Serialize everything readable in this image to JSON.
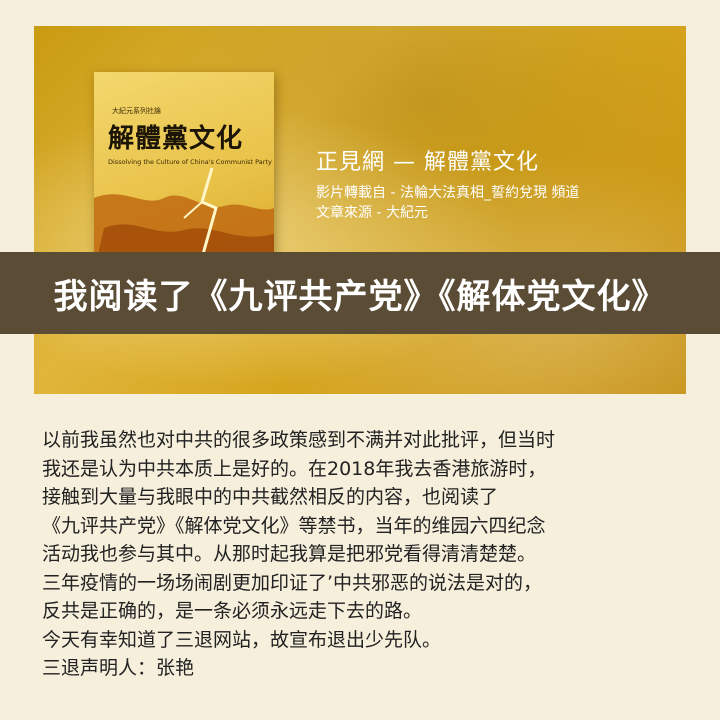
{
  "book": {
    "series": "大紀元系列社論",
    "title": "解體黨文化",
    "subtitle": "Dissolving the Culture of China's Communist Party"
  },
  "hero": {
    "title": "正見網 — 解體黨文化",
    "line1": "影片轉載自 - 法輪大法真相_誓約兌現  頻道",
    "line2": "文章來源 - 大紀元"
  },
  "banner": {
    "text": "我阅读了《九评共产党》《解体党文化》"
  },
  "article": {
    "lines": [
      "以前我虽然也对中共的很多政策感到不满并对此批评，但当时",
      "我还是认为中共本质上是好的。在2018年我去香港旅游时，",
      "接触到大量与我眼中的中共截然相反的内容，也阅读了",
      "《九评共产党》《解体党文化》等禁书，当年的维园六四纪念",
      "活动我也参与其中。从那时起我算是把邪党看得清清楚楚。",
      "三年疫情的一场场闹剧更加印证了’中共邪恶的说法是对的，",
      "反共是正确的，是一条必须永远走下去的路。",
      "今天有幸知道了三退网站，故宣布退出少先队。",
      "三退声明人：张艳"
    ]
  }
}
